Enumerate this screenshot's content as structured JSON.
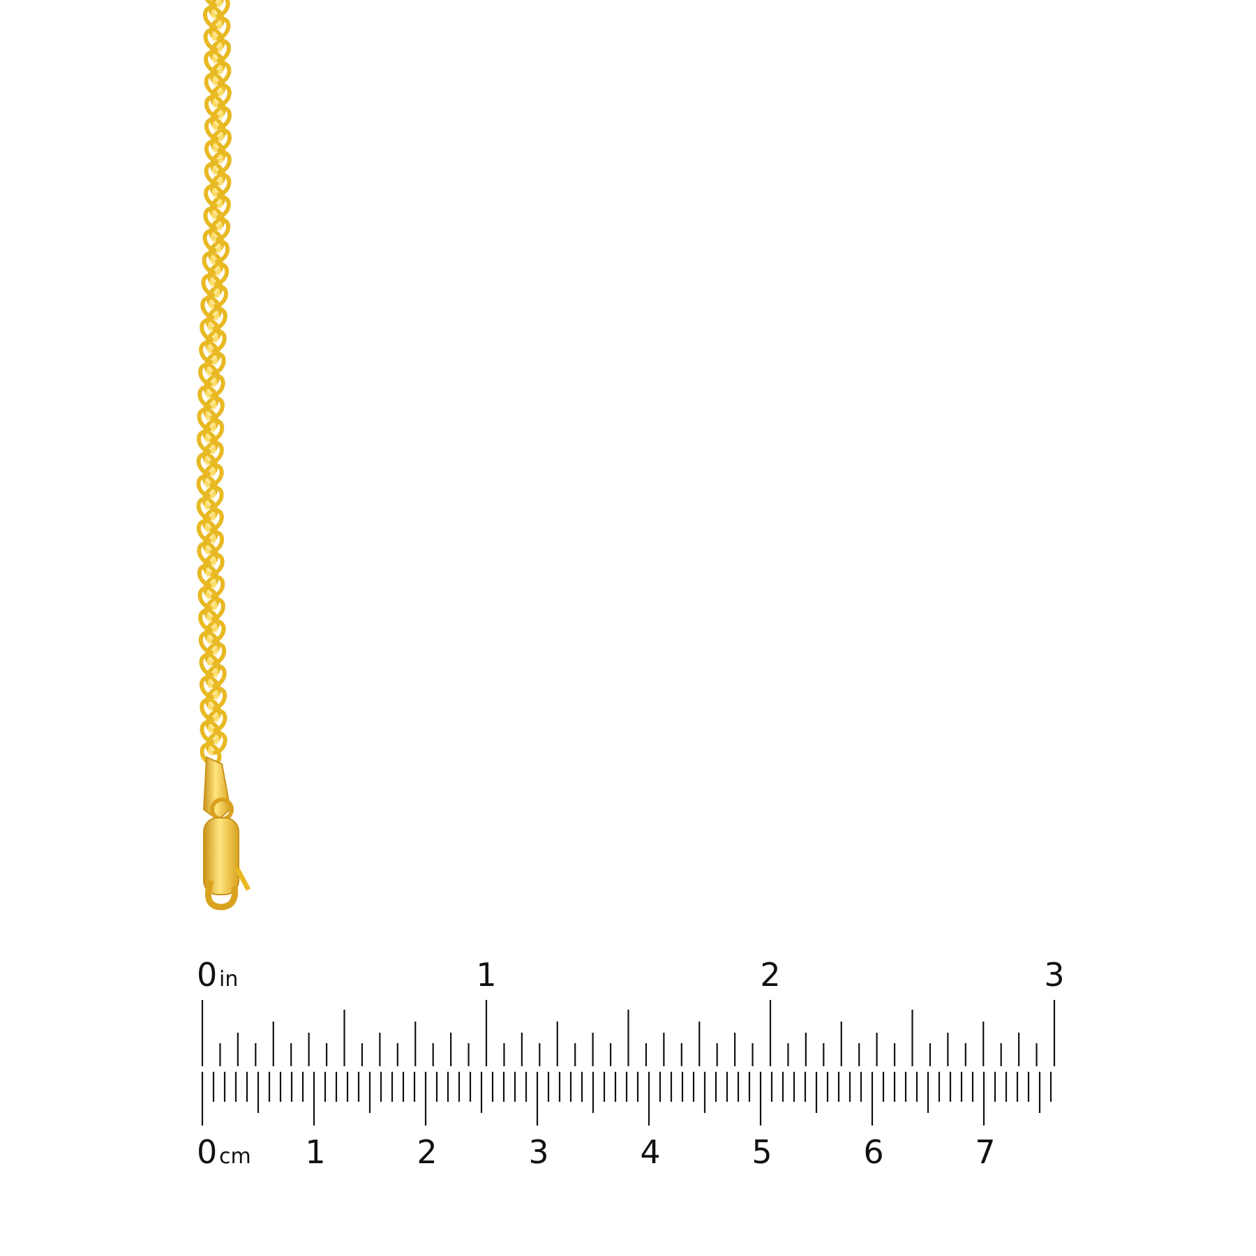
{
  "product": {
    "metal_color": "#E8B923",
    "metal_highlight": "#FFE680",
    "metal_shadow": "#C9921A"
  },
  "ruler": {
    "inch_unit": "in",
    "cm_unit": "cm",
    "inch_labels": [
      "0",
      "1",
      "2",
      "3"
    ],
    "cm_labels": [
      "0",
      "1",
      "2",
      "3",
      "4",
      "5",
      "6",
      "7"
    ],
    "inch_subdivisions": 16,
    "inch_max": 3,
    "cm_max_mm": 76,
    "tick_color": "#111111"
  }
}
